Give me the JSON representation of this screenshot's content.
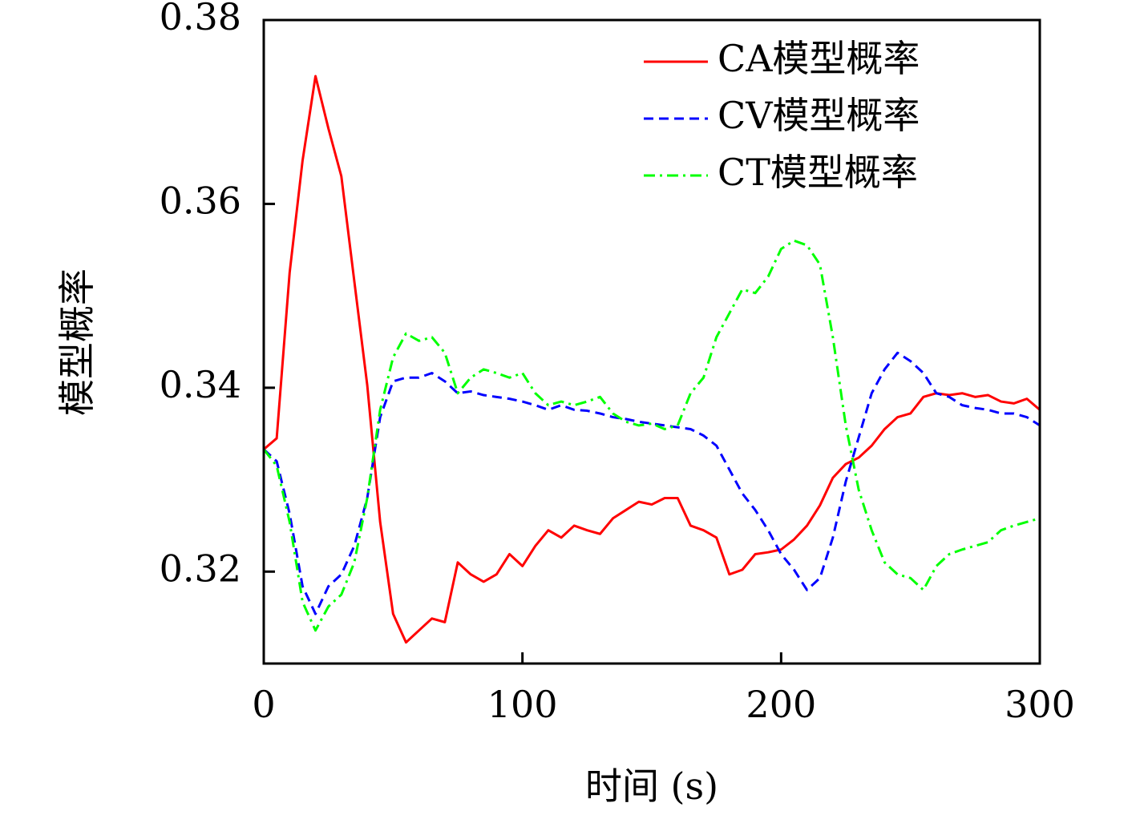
{
  "chart_data": {
    "type": "line",
    "xlabel": "时间 (s)",
    "ylabel": "模型概率",
    "x": [
      0,
      5,
      10,
      15,
      20,
      25,
      30,
      35,
      40,
      45,
      50,
      55,
      60,
      65,
      70,
      75,
      80,
      85,
      90,
      95,
      100,
      105,
      110,
      115,
      120,
      125,
      130,
      135,
      140,
      145,
      150,
      155,
      160,
      165,
      170,
      175,
      180,
      185,
      190,
      195,
      200,
      205,
      210,
      215,
      220,
      225,
      230,
      235,
      240,
      245,
      250,
      255,
      260,
      265,
      270,
      275,
      280,
      285,
      290,
      295,
      300
    ],
    "series": [
      {
        "name": "CA模型概率",
        "color": "#ff0000",
        "linestyle": "solid",
        "values": [
          0.3333,
          0.3345,
          0.3525,
          0.3647,
          0.3739,
          0.3682,
          0.363,
          0.3516,
          0.3403,
          0.3254,
          0.3154,
          0.3123,
          0.3136,
          0.3149,
          0.3145,
          0.321,
          0.3197,
          0.3189,
          0.3197,
          0.3219,
          0.3206,
          0.3228,
          0.3245,
          0.3237,
          0.325,
          0.3245,
          0.3241,
          0.3258,
          0.3267,
          0.3276,
          0.3273,
          0.328,
          0.328,
          0.325,
          0.3245,
          0.3237,
          0.3197,
          0.3202,
          0.3219,
          0.3221,
          0.3224,
          0.3235,
          0.325,
          0.3272,
          0.3302,
          0.3317,
          0.3324,
          0.3337,
          0.3355,
          0.3368,
          0.3372,
          0.339,
          0.3394,
          0.3392,
          0.3394,
          0.339,
          0.3392,
          0.3385,
          0.3383,
          0.3388,
          0.3376
        ]
      },
      {
        "name": "CV模型概率",
        "color": "#0000ff",
        "linestyle": "dashed",
        "values": [
          0.3333,
          0.332,
          0.3263,
          0.3184,
          0.3154,
          0.3184,
          0.3197,
          0.3228,
          0.328,
          0.3368,
          0.3407,
          0.3411,
          0.3411,
          0.3416,
          0.3407,
          0.3394,
          0.3396,
          0.3392,
          0.339,
          0.3388,
          0.3385,
          0.3381,
          0.3376,
          0.3381,
          0.3376,
          0.3375,
          0.3372,
          0.3368,
          0.3366,
          0.3363,
          0.3361,
          0.3359,
          0.3357,
          0.3355,
          0.3348,
          0.3337,
          0.3311,
          0.3285,
          0.3267,
          0.3245,
          0.3219,
          0.3202,
          0.318,
          0.3193,
          0.3237,
          0.3298,
          0.3346,
          0.3394,
          0.342,
          0.3438,
          0.3429,
          0.3416,
          0.3394,
          0.339,
          0.3381,
          0.3378,
          0.3376,
          0.3372,
          0.3372,
          0.3368,
          0.3359
        ]
      },
      {
        "name": "CT模型概率",
        "color": "#00ff00",
        "linestyle": "dashdot",
        "values": [
          0.3333,
          0.3315,
          0.3254,
          0.3167,
          0.3136,
          0.3162,
          0.3175,
          0.321,
          0.328,
          0.3376,
          0.3433,
          0.3459,
          0.3451,
          0.3455,
          0.3438,
          0.3394,
          0.3411,
          0.342,
          0.3416,
          0.3411,
          0.3416,
          0.3394,
          0.3381,
          0.3385,
          0.3381,
          0.3385,
          0.339,
          0.3372,
          0.3363,
          0.3359,
          0.3361,
          0.3355,
          0.3359,
          0.3394,
          0.3411,
          0.3455,
          0.3481,
          0.3507,
          0.3503,
          0.3521,
          0.3551,
          0.356,
          0.3555,
          0.3534,
          0.3455,
          0.3359,
          0.3289,
          0.3245,
          0.321,
          0.3197,
          0.3193,
          0.318,
          0.3206,
          0.3219,
          0.3224,
          0.3228,
          0.3232,
          0.3245,
          0.325,
          0.3254,
          0.3258
        ]
      }
    ],
    "xlim": [
      0,
      300
    ],
    "xticks": [
      0,
      100,
      200,
      300
    ],
    "ylim": [
      0.31,
      0.38
    ],
    "yticks": [
      0.32,
      0.34,
      0.36,
      0.38
    ],
    "legend": "upper right",
    "grid": false
  }
}
